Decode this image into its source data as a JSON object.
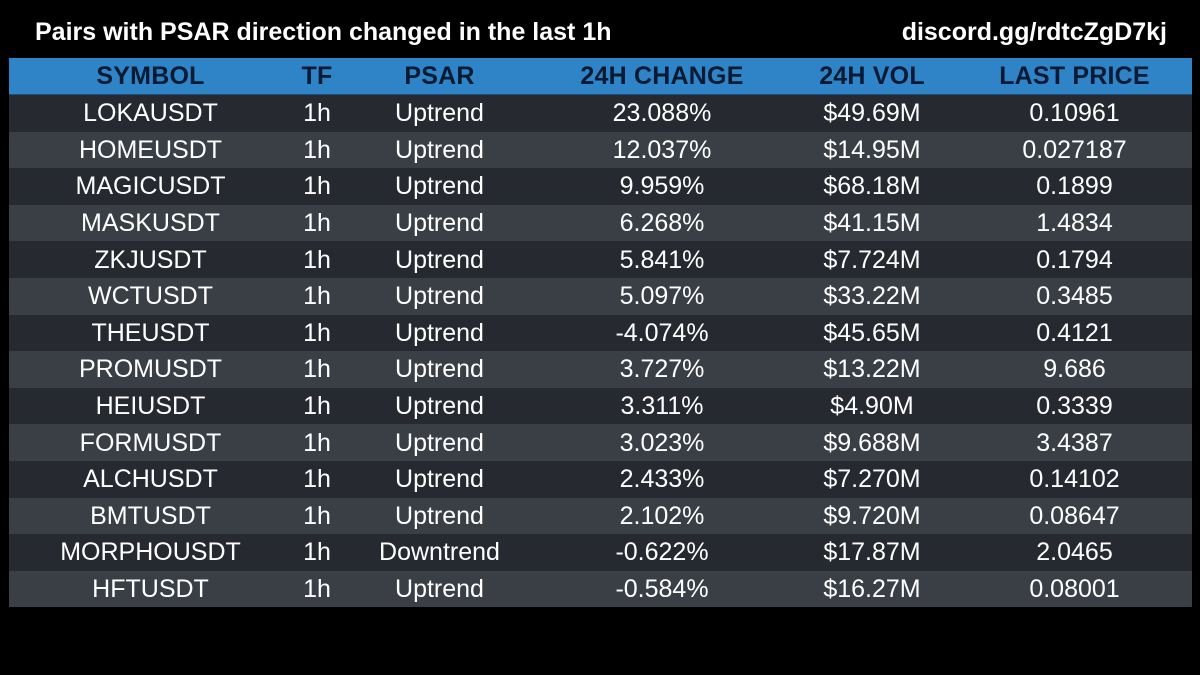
{
  "header": {
    "title": "Pairs with PSAR direction changed in the last 1h",
    "link": "discord.gg/rdtcZgD7kj"
  },
  "colors": {
    "header_bg": "#2e84c6",
    "header_text": "#071a33",
    "row_dark": "#262a30",
    "row_light": "#3a3f46",
    "page_bg": "#000000"
  },
  "table": {
    "columns": [
      "SYMBOL",
      "TF",
      "PSAR",
      "24H CHANGE",
      "24H VOL",
      "LAST PRICE"
    ],
    "rows": [
      [
        "LOKAUSDT",
        "1h",
        "Uptrend",
        "23.088%",
        "$49.69M",
        "0.10961"
      ],
      [
        "HOMEUSDT",
        "1h",
        "Uptrend",
        "12.037%",
        "$14.95M",
        "0.027187"
      ],
      [
        "MAGICUSDT",
        "1h",
        "Uptrend",
        "9.959%",
        "$68.18M",
        "0.1899"
      ],
      [
        "MASKUSDT",
        "1h",
        "Uptrend",
        "6.268%",
        "$41.15M",
        "1.4834"
      ],
      [
        "ZKJUSDT",
        "1h",
        "Uptrend",
        "5.841%",
        "$7.724M",
        "0.1794"
      ],
      [
        "WCTUSDT",
        "1h",
        "Uptrend",
        "5.097%",
        "$33.22M",
        "0.3485"
      ],
      [
        "THEUSDT",
        "1h",
        "Uptrend",
        "-4.074%",
        "$45.65M",
        "0.4121"
      ],
      [
        "PROMUSDT",
        "1h",
        "Uptrend",
        "3.727%",
        "$13.22M",
        "9.686"
      ],
      [
        "HEIUSDT",
        "1h",
        "Uptrend",
        "3.311%",
        "$4.90M",
        "0.3339"
      ],
      [
        "FORMUSDT",
        "1h",
        "Uptrend",
        "3.023%",
        "$9.688M",
        "3.4387"
      ],
      [
        "ALCHUSDT",
        "1h",
        "Uptrend",
        "2.433%",
        "$7.270M",
        "0.14102"
      ],
      [
        "BMTUSDT",
        "1h",
        "Uptrend",
        "2.102%",
        "$9.720M",
        "0.08647"
      ],
      [
        "MORPHOUSDT",
        "1h",
        "Downtrend",
        "-0.622%",
        "$17.87M",
        "2.0465"
      ],
      [
        "HFTUSDT",
        "1h",
        "Uptrend",
        "-0.584%",
        "$16.27M",
        "0.08001"
      ]
    ]
  }
}
